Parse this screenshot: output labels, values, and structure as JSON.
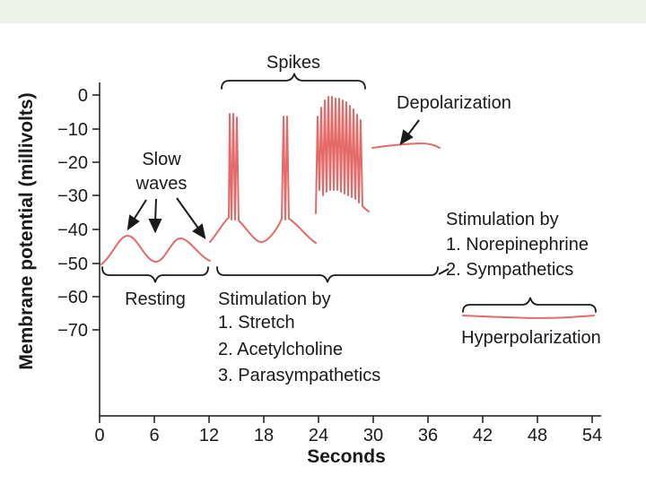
{
  "diagram": {
    "y_axis_title": "Membrane potential (millivolts)",
    "x_axis_title": "Seconds",
    "y_ticks": [
      "0",
      "−10",
      "−20",
      "−30",
      "−40",
      "−50",
      "−60",
      "−70"
    ],
    "x_ticks": [
      "0",
      "6",
      "12",
      "18",
      "24",
      "30",
      "36",
      "42",
      "48",
      "54"
    ],
    "labels": {
      "spikes": "Spikes",
      "depolarization": "Depolarization",
      "slow_line1": "Slow",
      "slow_line2": "waves",
      "resting": "Resting",
      "stim_para_title": "Stimulation by",
      "stim_para_1": "1. Stretch",
      "stim_para_2": "2. Acetylcholine",
      "stim_para_3": "3. Parasympathetics",
      "stim_symp_title": "Stimulation by",
      "stim_symp_1": "1. Norepinephrine",
      "stim_symp_2": "2. Sympathetics",
      "hyperpolarization": "Hyperpolarization"
    },
    "colors": {
      "trace": "#e46a6a",
      "ink": "#1a1a1a",
      "background": "#ffffff",
      "top_band": "#eef0ea"
    }
  }
}
